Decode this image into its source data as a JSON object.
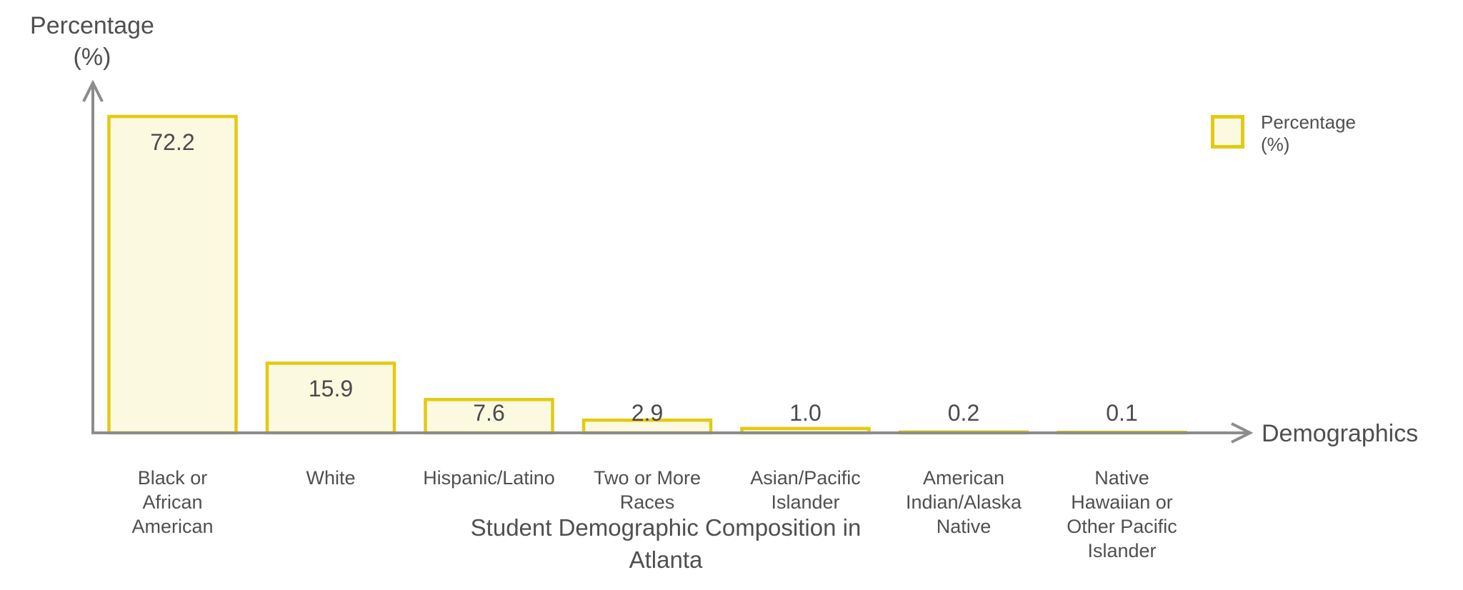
{
  "chart_data": {
    "type": "bar",
    "title": "Student Demographic Composition in Atlanta",
    "xlabel": "Demographics",
    "ylabel": "Percentage (%)",
    "categories": [
      "Black or African American",
      "White",
      "Hispanic/Latino",
      "Two or More Races",
      "Asian/Pacific Islander",
      "American Indian/Alaska Native",
      "Native Hawaiian or Other Pacific Islander"
    ],
    "values": [
      72.2,
      15.9,
      7.6,
      2.9,
      1.0,
      0.2,
      0.1
    ],
    "value_labels": [
      "72.2",
      "15.9",
      "7.6",
      "2.9",
      "1.0",
      "0.2",
      "0.1"
    ],
    "series_name": "Percentage (%)",
    "ylim": [
      0,
      80
    ],
    "grid": false,
    "legend_position": "top-right"
  },
  "ui": {
    "y_axis_title_lines": [
      "Percentage",
      "(%)"
    ],
    "x_axis_title": "Demographics",
    "legend_label_lines": [
      "Percentage",
      "(%)"
    ],
    "category_label_lines": [
      [
        "Black or",
        "African",
        "American"
      ],
      [
        "White"
      ],
      [
        "Hispanic/Latino"
      ],
      [
        "Two or More",
        "Races"
      ],
      [
        "Asian/Pacific",
        "Islander"
      ],
      [
        "American",
        "Indian/Alaska",
        "Native"
      ],
      [
        "Native",
        "Hawaiian or",
        "Other Pacific",
        "Islander"
      ]
    ],
    "title_text": "Student Demographic Composition in Atlanta"
  },
  "colors": {
    "bar_fill": "#FCF9E1",
    "bar_border": "#E3CA10",
    "axis": "#8C8C8C",
    "text": "#4F4F4F",
    "background": "#FFFFFF"
  }
}
